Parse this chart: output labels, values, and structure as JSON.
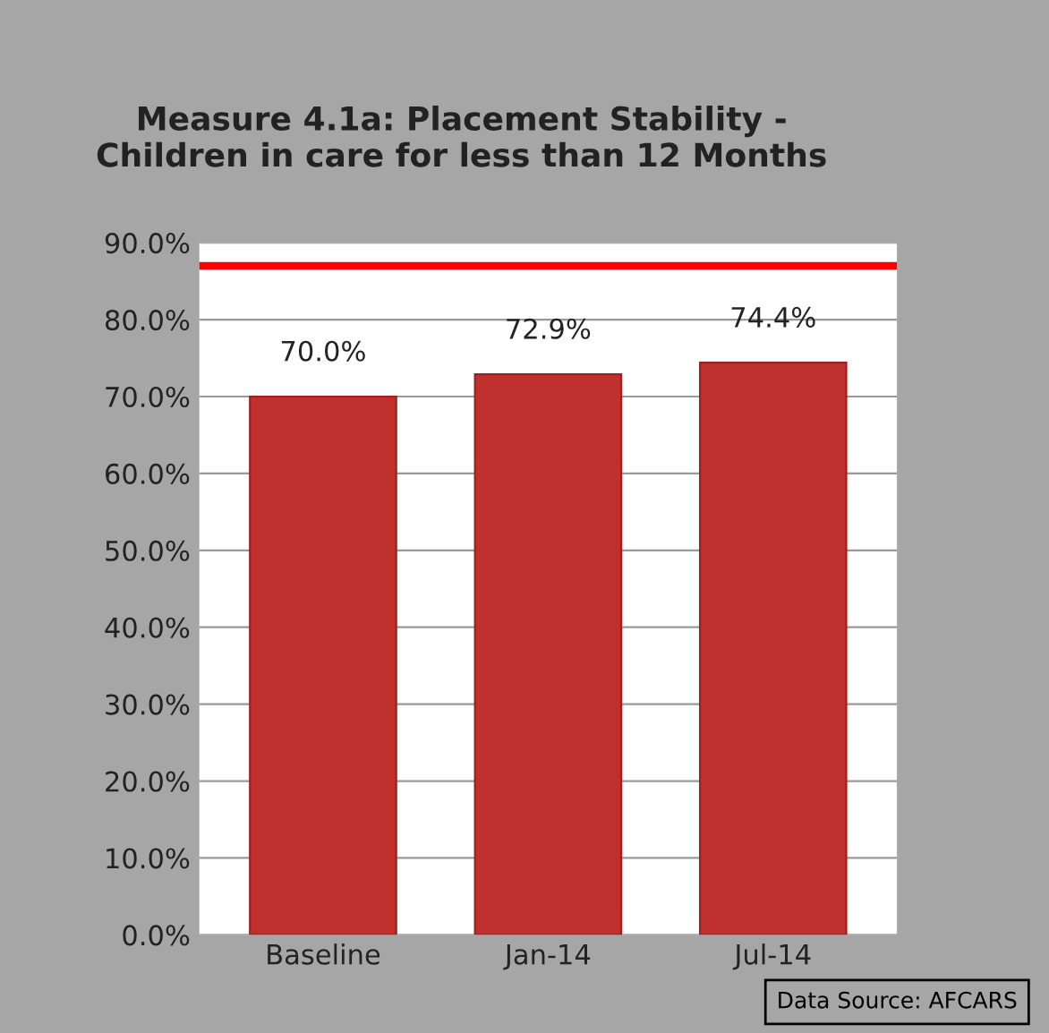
{
  "chart_data": {
    "type": "bar",
    "title": "Measure 4.1a: Placement Stability -\nChildren in care for less than 12 Months",
    "categories": [
      "Baseline",
      "Jan-14",
      "Jul-14"
    ],
    "values": [
      70.0,
      72.9,
      74.4
    ],
    "color": "#c0302f",
    "value_labels": [
      "70.0%",
      "72.9%",
      "74.4%"
    ],
    "ylim": [
      0,
      90
    ],
    "yticks": [
      {
        "value": 0,
        "label": "0.0%"
      },
      {
        "value": 10,
        "label": "10.0%"
      },
      {
        "value": 20,
        "label": "20.0%"
      },
      {
        "value": 30,
        "label": "30.0%"
      },
      {
        "value": 40,
        "label": "40.0%"
      },
      {
        "value": 50,
        "label": "50.0%"
      },
      {
        "value": 60,
        "label": "60.0%"
      },
      {
        "value": 70,
        "label": "70.0%"
      },
      {
        "value": 80,
        "label": "80.0%"
      },
      {
        "value": 90,
        "label": "90.0%"
      }
    ],
    "grid": "y",
    "ref_lines": [
      {
        "axis": "y",
        "value": 87,
        "color": "#ff0000"
      }
    ],
    "annotations": [
      "Data Source: AFCARS"
    ]
  }
}
